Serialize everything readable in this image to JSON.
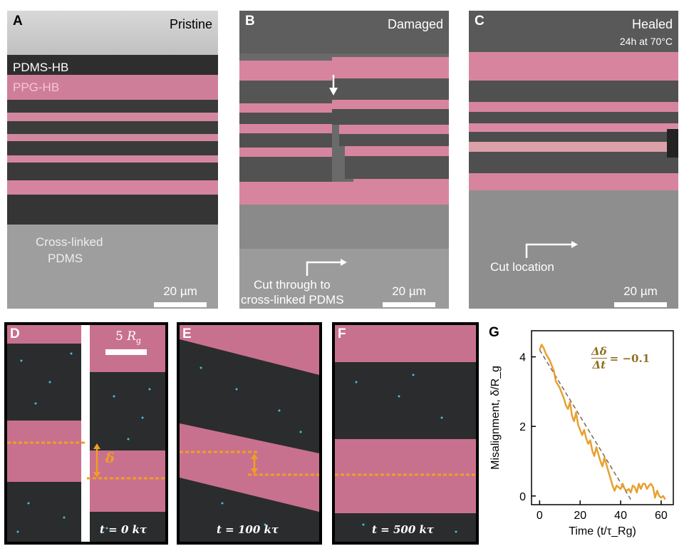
{
  "panels": {
    "a": {
      "letter": "A",
      "title": "Pristine",
      "layer1": "PDMS-HB",
      "layer2": "PPG-HB",
      "base1": "Cross-linked",
      "base2": "PDMS",
      "scale": "20 µm"
    },
    "b": {
      "letter": "B",
      "title": "Damaged",
      "cut1": "Cut through to",
      "cut2": "cross-linked PDMS",
      "scale": "20 µm"
    },
    "c": {
      "letter": "C",
      "title": "Healed",
      "subtitle": "24h at 70°C",
      "cut": "Cut location",
      "scale": "20 µm"
    },
    "d": {
      "letter": "D",
      "scale_num": "5",
      "scale_sym": "R",
      "scale_sub": "g",
      "delta": "δ",
      "time": "t = 0 kτ"
    },
    "e": {
      "letter": "E",
      "time": "t = 100 kτ"
    },
    "f": {
      "letter": "F",
      "time": "t = 500 kτ"
    },
    "g": {
      "letter": "G"
    }
  },
  "colors": {
    "pink": "#d7859f",
    "dark": "#2b2c2d",
    "orange": "#f0a020",
    "curve": "#e8a030",
    "fit": "#7a6a50",
    "eq": "#8f7020"
  },
  "chart_data": {
    "type": "line",
    "xlabel": "Time (t/τ_Rg)",
    "ylabel": "Misalignment, δ/R_g",
    "xlim": [
      -4,
      66
    ],
    "ylim": [
      -0.25,
      4.75
    ],
    "xticks": [
      0,
      20,
      40,
      60
    ],
    "yticks": [
      0,
      2,
      4
    ],
    "annotation": {
      "num": "Δδ",
      "den": "Δt",
      "rhs": "= −0.1"
    },
    "series": [
      {
        "type": "line",
        "x": [
          0,
          1,
          2,
          3,
          4,
          5,
          6,
          7,
          8,
          9,
          10,
          11,
          12,
          13,
          14,
          15,
          16,
          17,
          18,
          19,
          20,
          21,
          22,
          23,
          24,
          25,
          26,
          27,
          28,
          29,
          30,
          31,
          32,
          33,
          34,
          35,
          36,
          37,
          38,
          39,
          40,
          41,
          42,
          43,
          44,
          45,
          46,
          47,
          48,
          49,
          50,
          51,
          52,
          53,
          54,
          55,
          56,
          57,
          58,
          59,
          60,
          61,
          62
        ],
        "y": [
          4.2,
          4.35,
          4.25,
          4.1,
          4.0,
          3.9,
          3.75,
          3.6,
          3.3,
          3.2,
          3.1,
          2.95,
          2.8,
          2.6,
          2.5,
          2.7,
          2.3,
          2.15,
          2.4,
          2.05,
          1.9,
          1.75,
          1.9,
          1.65,
          1.5,
          1.6,
          1.3,
          1.15,
          1.4,
          1.2,
          1.0,
          0.85,
          1.1,
          0.9,
          0.7,
          0.5,
          0.3,
          0.15,
          0.3,
          0.25,
          0.2,
          0.35,
          0.2,
          0.15,
          0.2,
          0.1,
          0.3,
          0.25,
          0.1,
          0.35,
          0.2,
          0.35,
          0.35,
          0.2,
          0.3,
          0.35,
          0.25,
          -0.05,
          0.15,
          0.0,
          -0.05,
          0.0,
          -0.1
        ]
      },
      {
        "type": "dashed-fit",
        "x": [
          0,
          45
        ],
        "y": [
          4.2,
          -0.1
        ]
      }
    ]
  }
}
